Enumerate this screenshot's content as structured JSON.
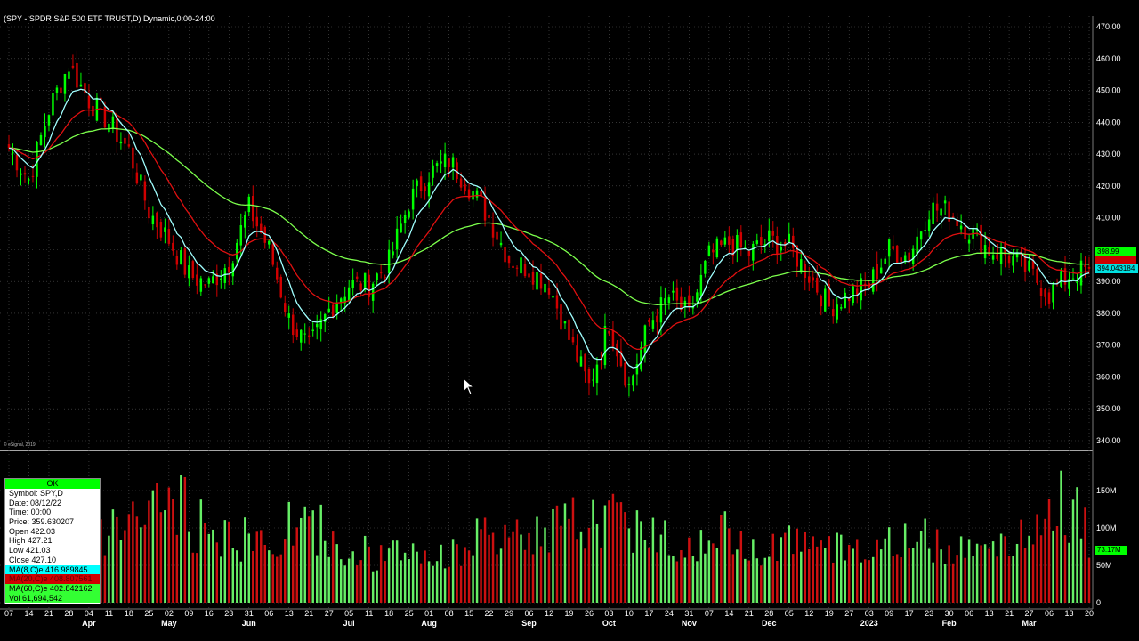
{
  "title": "(SPY - SPDR S&P 500 ETF TRUST,D) Dynamic,0:00-24:00",
  "copyright": "© eSignal, 2019",
  "colors": {
    "background": "#000000",
    "up_candle": "#00ff00",
    "down_candle": "#d00000",
    "ma8": "#a0ffff",
    "ma20": "#e01010",
    "ma60": "#7cff4c",
    "volume_up": "#66ee66",
    "volume_down": "#cc1010",
    "grid": "#555555"
  },
  "price_axis": {
    "min": 335,
    "max": 472,
    "ticks": [
      "470.00",
      "460.00",
      "450.00",
      "440.00",
      "430.00",
      "420.00",
      "410.00",
      "400.00",
      "390.00",
      "380.00",
      "370.00",
      "360.00",
      "350.00",
      "340.00"
    ],
    "tick_values": [
      470,
      460,
      450,
      440,
      430,
      420,
      410,
      400,
      390,
      380,
      370,
      360,
      350,
      340
    ]
  },
  "volume_axis": {
    "ticks": [
      "150M",
      "100M",
      "50M",
      "0"
    ],
    "tick_values": [
      150,
      100,
      50,
      0
    ]
  },
  "badges": {
    "ma8": "398.99",
    "ma20": "399.00",
    "price": "394.043184",
    "volume": "73.17M"
  },
  "x_axis": {
    "day_labels": [
      "07",
      "14",
      "21",
      "28",
      "04",
      "11",
      "18",
      "25",
      "02",
      "09",
      "16",
      "23",
      "31",
      "06",
      "13",
      "21",
      "27",
      "05",
      "11",
      "18",
      "25",
      "01",
      "08",
      "15",
      "22",
      "29",
      "06",
      "12",
      "19",
      "26",
      "03",
      "10",
      "17",
      "24",
      "31",
      "07",
      "14",
      "21",
      "28",
      "05",
      "12",
      "19",
      "27",
      "03",
      "09",
      "17",
      "23",
      "30",
      "06",
      "13",
      "21",
      "27",
      "06",
      "13",
      "20"
    ],
    "month_labels": [
      {
        "label": "Apr",
        "at": 4
      },
      {
        "label": "May",
        "at": 8
      },
      {
        "label": "Jun",
        "at": 12
      },
      {
        "label": "Jul",
        "at": 17
      },
      {
        "label": "Aug",
        "at": 21
      },
      {
        "label": "Sep",
        "at": 26
      },
      {
        "label": "Oct",
        "at": 30
      },
      {
        "label": "Nov",
        "at": 34
      },
      {
        "label": "Dec",
        "at": 38
      },
      {
        "label": "2023",
        "at": 43
      },
      {
        "label": "Feb",
        "at": 47
      },
      {
        "label": "Mar",
        "at": 51
      }
    ]
  },
  "data_window": {
    "status": "OK",
    "symbol": "Symbol: SPY,D",
    "date": "Date: 08/12/22",
    "time": "Time: 00:00",
    "price": "Price: 359.630207",
    "open": "Open 422.03",
    "high": "High 427.21",
    "low": "Low 421.03",
    "close": "Close 427.10",
    "ma8": "MA(8,C)e 416.989845",
    "ma20": "MA(20,C)e 408.807561",
    "ma60": "MA(60,C)e 402.842162",
    "vol": "Vol 61,694,542"
  },
  "chart_data": {
    "type": "candlestick",
    "title": "(SPY - SPDR S&P 500 ETF TRUST,D) Dynamic,0:00-24:00",
    "series": [
      {
        "name": "MA(8,C)e"
      },
      {
        "name": "MA(20,C)e"
      },
      {
        "name": "MA(60,C)e"
      }
    ],
    "weekly_close": [
      432,
      422,
      444,
      458,
      447,
      440,
      431,
      412,
      403,
      392,
      389,
      396,
      413,
      400,
      378,
      369,
      381,
      389,
      389,
      396,
      415,
      424,
      428,
      420,
      410,
      397,
      394,
      389,
      372,
      357,
      377,
      357,
      377,
      385,
      379,
      398,
      402,
      399,
      403,
      401,
      392,
      382,
      386,
      389,
      400,
      398,
      413,
      412,
      406,
      400,
      398,
      393,
      386,
      392,
      394
    ],
    "volume_M": [
      90,
      85,
      60,
      80,
      100,
      120,
      140,
      155,
      150,
      120,
      110,
      100,
      95,
      100,
      120,
      115,
      90,
      80,
      70,
      75,
      80,
      70,
      85,
      100,
      95,
      100,
      110,
      120,
      125,
      130,
      135,
      120,
      110,
      90,
      100,
      110,
      95,
      90,
      100,
      100,
      80,
      85,
      90,
      85,
      95,
      100,
      95,
      90,
      100,
      95,
      100,
      110,
      160,
      140,
      73
    ]
  },
  "cursor_icon": "arrow-cursor-icon"
}
